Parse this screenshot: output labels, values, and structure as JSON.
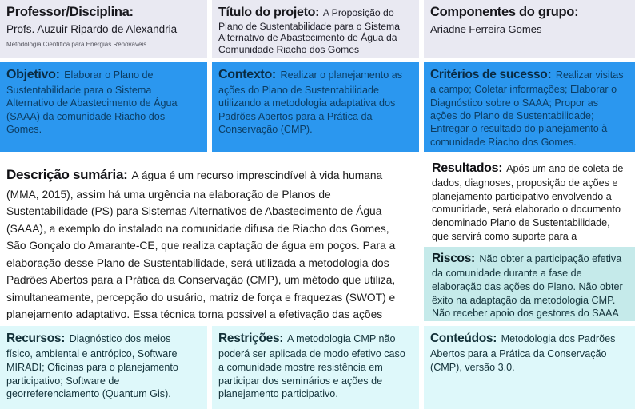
{
  "colors": {
    "background": "#ffffff",
    "header_bg": "#e9e9f2",
    "primary_blue": "#2b97ef",
    "blue_heading": "#0a2c44",
    "blue_text": "#0c3d63",
    "risk_teal": "#c5eaea",
    "bottom_cyan": "#def8fa",
    "body_text": "#1d1d1d",
    "teal_text": "#14333b"
  },
  "header": {
    "professor": {
      "label": "Professor/Disciplina:",
      "name": "Profs. Auzuir Ripardo de Alexandria",
      "subtitle": "Metodologia Científica para Energias Renováveis"
    },
    "titulo": {
      "label": "Título do projeto:",
      "text": "A Proposição do Plano de Sustentabilidade para o Sistema Alternativo de Abastecimento de Água da Comunidade Riacho dos Gomes"
    },
    "componentes": {
      "label": "Componentes do grupo:",
      "text": "Ariadne Ferreira Gomes"
    }
  },
  "blue_row": {
    "objetivo": {
      "label": "Objetivo:",
      "text": "Elaborar o Plano de Sustentabilidade para o Sistema Alternativo de Abastecimento de Água (SAAA) da comunidade Riacho dos Gomes."
    },
    "contexto": {
      "label": "Contexto:",
      "text": "Realizar o planejamento as ações do Plano de Sustentabilidade utilizando a metodologia adaptativa dos Padrões Abertos para a Prática da Conservação (CMP)."
    },
    "criterios": {
      "label": "Critérios de sucesso:",
      "text": "Realizar visitas a campo; Coletar informações; Elaborar o Diagnóstico sobre o SAAA; Propor as ações do Plano de Sustentabilidade; Entregar o resultado do planejamento à comunidade Riacho dos Gomes."
    }
  },
  "main": {
    "descricao": {
      "label": "Descrição sumária:",
      "text": "A água é um recurso imprescindível à vida humana (MMA, 2015), assim há uma urgência na elaboração de Planos de Sustentabilidade (PS) para Sistemas Alternativos de Abastecimento de Água (SAAA), a exemplo do instalado na comunidade difusa de Riacho dos Gomes, São Gonçalo do Amarante-CE, que realiza captação de água em poços. Para a elaboração desse Plano de Sustentabilidade, será utilizada a metodologia dos Padrões Abertos para a Prática da Conservação (CMP), um método que utiliza, simultaneamente, percepção do usuário, matriz de força e fraquezas (SWOT) e planejamento adaptativo. Essa técnica torna possivel a efetivação das ações previstas no Plano de Sustentabilidade, uma vez que torna a comunidade parte integrante do processo de planejamento, trazendo a ideia de pertencimento do Sistema a esses usuários."
    },
    "resultados": {
      "label": "Resultados:",
      "text": "Após um ano de coleta de dados, diagnoses, proposição de ações e planejamento participativo envolvendo a comunidade, será elaborado o documento denominado Plano de Sustentabilidade, que servirá como suporte para a manutenção sustentável do SAAA."
    },
    "riscos": {
      "label": "Riscos:",
      "text": "Não obter a participação efetiva da comunidade durante a fase de elaboração das ações do Plano. Não obter êxito na adaptação da metodologia CMP. Não receber apoio dos gestores do SAAA para aplicação das ações integrantes do Plano de Sutentabilidade."
    }
  },
  "bottom_row": {
    "recursos": {
      "label": "Recursos:",
      "text": "Diagnóstico dos meios físico, ambiental e antrópico, Software MIRADI; Oficinas para o planejamento participativo; Software de georreferenciamento (Quantum Gis)."
    },
    "restricoes": {
      "label": "Restrições:",
      "text": "A metodologia CMP não poderá ser aplicada de modo efetivo caso a comunidade mostre resistência em participar dos seminários e ações de planejamento participativo."
    },
    "conteudos": {
      "label": "Conteúdos:",
      "text": "Metodologia dos Padrões Abertos para a Prática da Conservação (CMP), versão 3.0."
    }
  }
}
